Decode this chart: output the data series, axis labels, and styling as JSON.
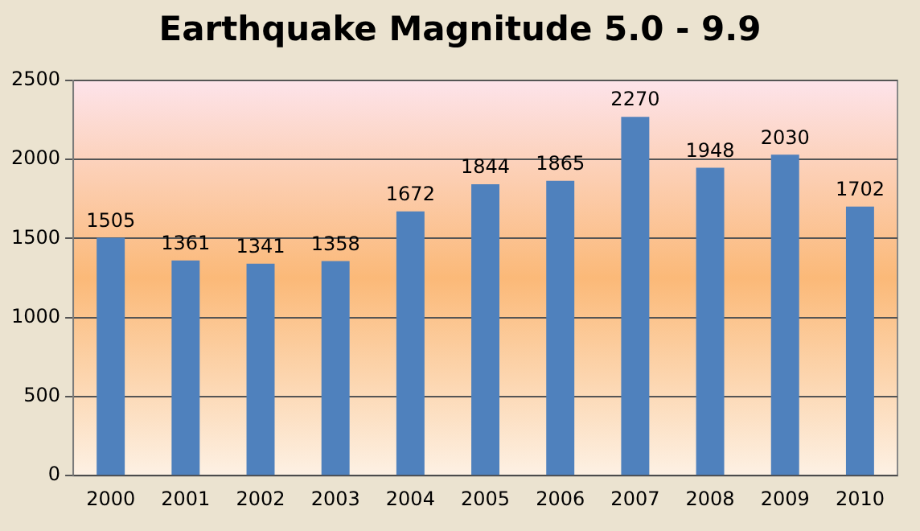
{
  "chart_data": {
    "type": "bar",
    "title": "Earthquake Magnitude 5.0 - 9.9",
    "categories": [
      "2000",
      "2001",
      "2002",
      "2003",
      "2004",
      "2005",
      "2006",
      "2007",
      "2008",
      "2009",
      "2010"
    ],
    "values": [
      1505,
      1361,
      1341,
      1358,
      1672,
      1844,
      1865,
      2270,
      1948,
      2030,
      1702
    ],
    "color": "#4f81bd",
    "ylim": [
      0,
      2500
    ],
    "yticks": [
      0,
      500,
      1000,
      1500,
      2000,
      2500
    ],
    "grid": "y",
    "data_labels": true
  }
}
